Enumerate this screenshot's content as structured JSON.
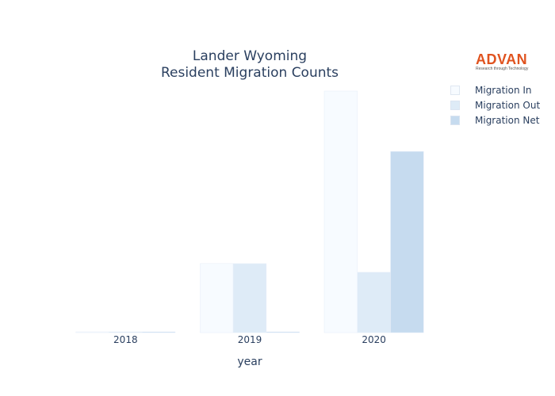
{
  "logo": {
    "name": "ADVAN",
    "tagline": "Research through Technology"
  },
  "chart_data": {
    "type": "bar",
    "title": "Lander Wyoming",
    "subtitle": "Resident Migration Counts",
    "xlabel": "year",
    "ylabel": "",
    "categories": [
      "2018",
      "2019",
      "2020"
    ],
    "ylim": [
      0,
      7
    ],
    "grid": false,
    "legend_position": "top-right",
    "series": [
      {
        "name": "Migration In",
        "values": [
          0,
          2,
          7
        ],
        "color": "#f7fbff"
      },
      {
        "name": "Migration Out",
        "values": [
          0,
          2,
          1.75
        ],
        "color": "#deebf7"
      },
      {
        "name": "Migration Net",
        "values": [
          0,
          0,
          5.25
        ],
        "color": "#c6dbef"
      }
    ]
  }
}
